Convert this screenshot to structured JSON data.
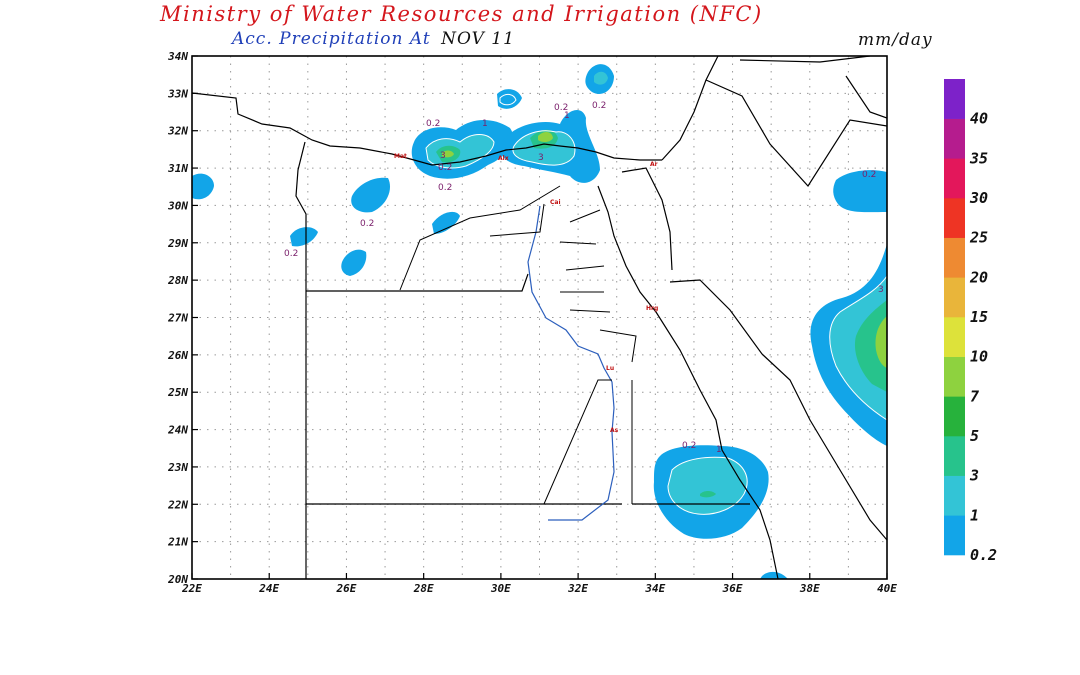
{
  "header": {
    "title": "Ministry of Water Resources and Irrigation (NFC)",
    "product": "Acc. Precipitation",
    "at_label": "At",
    "date": "NOV 11",
    "units": "mm/day"
  },
  "map": {
    "lon_range": [
      22,
      40
    ],
    "lat_range": [
      20,
      34
    ],
    "lon_ticks": [
      "22E",
      "24E",
      "26E",
      "28E",
      "30E",
      "32E",
      "34E",
      "36E",
      "38E",
      "40E"
    ],
    "lat_ticks": [
      "20N",
      "21N",
      "22N",
      "23N",
      "24N",
      "25N",
      "26N",
      "27N",
      "28N",
      "29N",
      "30N",
      "31N",
      "32N",
      "33N",
      "34N"
    ],
    "grid": "dotted"
  },
  "legend": {
    "levels": [
      "0.2",
      "1",
      "3",
      "5",
      "7",
      "10",
      "15",
      "20",
      "25",
      "30",
      "35",
      "40"
    ],
    "colors": [
      "#12a5e8",
      "#33c4d6",
      "#27c38c",
      "#27b23c",
      "#8ed23f",
      "#dde23a",
      "#e9b53a",
      "#ee8a32",
      "#ee3424",
      "#e3175b",
      "#b51c8e",
      "#7d22c9"
    ]
  },
  "contour_labels": [
    "0.2",
    "0.2",
    "0.2",
    "0.2",
    "0.2",
    "0.2",
    "0.2",
    "0.2",
    "0.2",
    "1",
    "1",
    "1",
    "3",
    "3",
    "3"
  ],
  "cities": [
    "Mat",
    "Alx",
    "Ar",
    "Cai",
    "Hrg",
    "Lu",
    "As"
  ]
}
